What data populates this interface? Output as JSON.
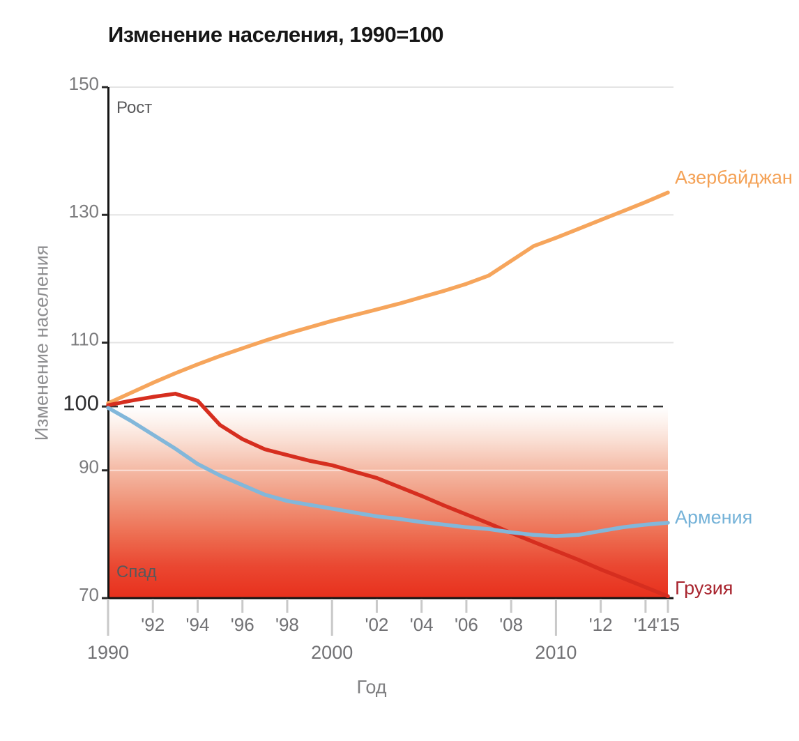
{
  "chart_data": {
    "type": "line",
    "title": "Изменение населения, 1990=100",
    "xlabel": "Год",
    "ylabel": "Изменение населения",
    "x_range": [
      1990,
      2015
    ],
    "ylim": [
      70,
      150
    ],
    "grid": "horizontal",
    "legend_position": "line-ends-right",
    "baseline": {
      "value": 100,
      "style": "dashed",
      "color": "#333333"
    },
    "zones": {
      "above": "Рост",
      "below": "Спад"
    },
    "x": [
      1990,
      1991,
      1992,
      1993,
      1994,
      1995,
      1996,
      1997,
      1998,
      1999,
      2000,
      2001,
      2002,
      2003,
      2004,
      2005,
      2006,
      2007,
      2008,
      2009,
      2010,
      2011,
      2012,
      2013,
      2014,
      2015
    ],
    "series": [
      {
        "id": "azerbaijan",
        "name": "Азербайджан",
        "color": "#f6a55c",
        "label_color": "#f4a155",
        "values": [
          100.5,
          102.1,
          103.7,
          105.2,
          106.6,
          107.9,
          109.1,
          110.3,
          111.4,
          112.4,
          113.4,
          114.3,
          115.2,
          116.1,
          117.1,
          118.1,
          119.2,
          120.5,
          122.8,
          125.1,
          126.4,
          127.8,
          129.2,
          130.6,
          132.0,
          133.5
        ]
      },
      {
        "id": "georgia",
        "name": "Грузия",
        "color": "#d62e1f",
        "label_color": "#a8242e",
        "values": [
          100.2,
          100.9,
          101.5,
          102.0,
          100.9,
          97.1,
          94.9,
          93.3,
          92.4,
          91.5,
          90.8,
          89.8,
          88.8,
          87.4,
          86.0,
          84.5,
          83.1,
          81.7,
          80.2,
          78.8,
          77.4,
          76.0,
          74.5,
          73.1,
          71.7,
          70.3
        ]
      },
      {
        "id": "armenia",
        "name": "Армения",
        "color": "#82b7da",
        "label_color": "#74b2d8",
        "values": [
          99.8,
          97.8,
          95.6,
          93.4,
          91.0,
          89.2,
          87.7,
          86.2,
          85.2,
          84.6,
          84.0,
          83.4,
          82.8,
          82.4,
          81.9,
          81.5,
          81.1,
          80.8,
          80.3,
          79.9,
          79.7,
          79.9,
          80.5,
          81.1,
          81.5,
          81.8
        ]
      }
    ],
    "y_ticks": [
      {
        "value": 150,
        "label": "150"
      },
      {
        "value": 130,
        "label": "130"
      },
      {
        "value": 110,
        "label": "110"
      },
      {
        "value": 100,
        "label": "100",
        "emphasis": true
      },
      {
        "value": 90,
        "label": "90"
      },
      {
        "value": 70,
        "label": "70"
      }
    ],
    "x_ticks": [
      {
        "year": 1990,
        "label": "1990",
        "major": true
      },
      {
        "year": 1992,
        "label": "'92"
      },
      {
        "year": 1994,
        "label": "'94"
      },
      {
        "year": 1996,
        "label": "'96"
      },
      {
        "year": 1998,
        "label": "'98"
      },
      {
        "year": 2000,
        "label": "2000",
        "major": true
      },
      {
        "year": 2002,
        "label": "'02"
      },
      {
        "year": 2004,
        "label": "'04"
      },
      {
        "year": 2006,
        "label": "'06"
      },
      {
        "year": 2008,
        "label": "'08"
      },
      {
        "year": 2010,
        "label": "2010",
        "major": true
      },
      {
        "year": 2012,
        "label": "'12"
      },
      {
        "year": 2014,
        "label": "'14"
      },
      {
        "year": 2015,
        "label": "'15"
      }
    ],
    "gridline_values": [
      150,
      130,
      110,
      90
    ],
    "decline_gradient": {
      "from_value": 100,
      "to_value": 70,
      "stops": [
        {
          "offset": 0,
          "color": "#ffffff"
        },
        {
          "offset": 0.08,
          "color": "#fdf2ed"
        },
        {
          "offset": 0.17,
          "color": "#fae0d5"
        },
        {
          "offset": 0.34,
          "color": "#f4b7a2"
        },
        {
          "offset": 0.5,
          "color": "#f09479"
        },
        {
          "offset": 0.68,
          "color": "#ed6b4f"
        },
        {
          "offset": 0.83,
          "color": "#ea4832"
        },
        {
          "offset": 1,
          "color": "#e8301c"
        }
      ]
    }
  }
}
